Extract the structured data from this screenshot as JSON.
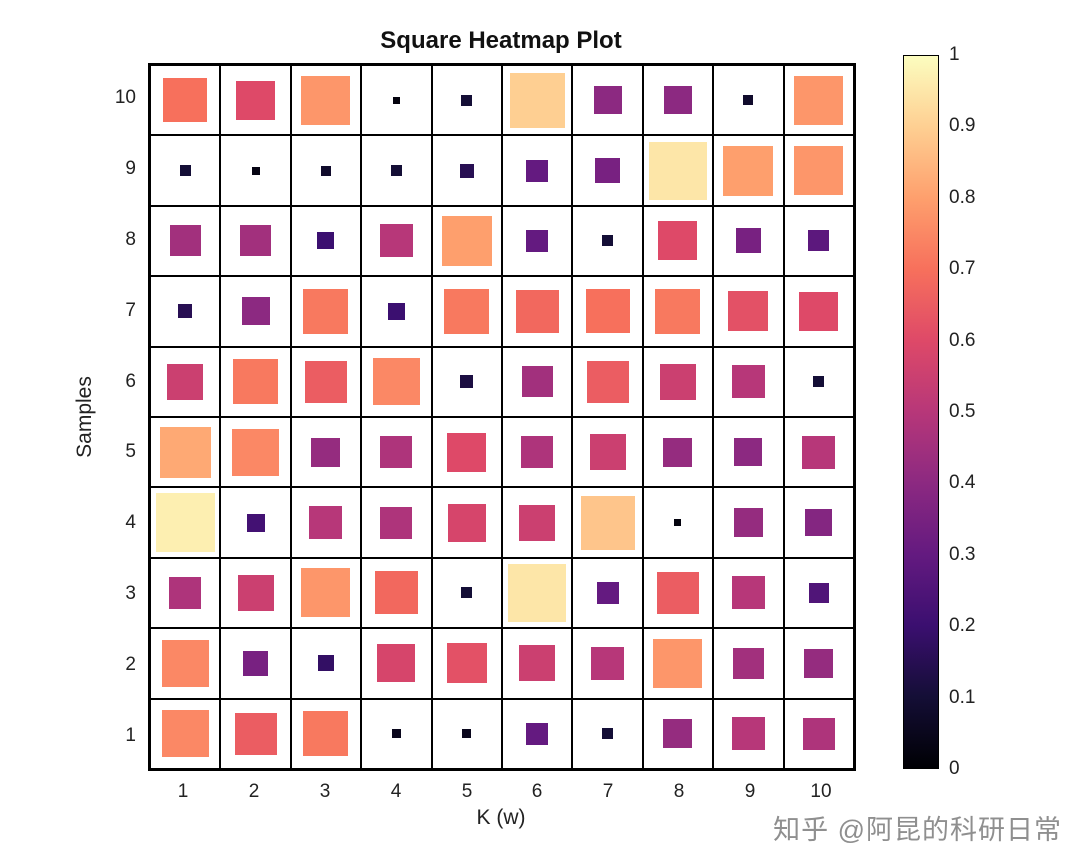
{
  "title": "Square Heatmap Plot",
  "watermark": "知乎 @阿昆的科研日常",
  "chart_data": {
    "type": "heatmap",
    "title": "Square Heatmap Plot",
    "xlabel": "K (w)",
    "ylabel": "Samples",
    "x_ticks": [
      "1",
      "2",
      "3",
      "4",
      "5",
      "6",
      "7",
      "8",
      "9",
      "10"
    ],
    "y_ticks_top_to_bottom": [
      "10",
      "9",
      "8",
      "7",
      "6",
      "5",
      "4",
      "3",
      "2",
      "1"
    ],
    "value_range": [
      0,
      1
    ],
    "encoding": "each cell drawn as a centered square; both square size and fill color encode the cell value",
    "grid": "on, black cell outlines",
    "colormap": "magma",
    "colormap_stops": [
      {
        "t": 0.0,
        "c": "#000004"
      },
      {
        "t": 0.1,
        "c": "#140e36"
      },
      {
        "t": 0.2,
        "c": "#3b0f70"
      },
      {
        "t": 0.3,
        "c": "#641a80"
      },
      {
        "t": 0.4,
        "c": "#8c2981"
      },
      {
        "t": 0.5,
        "c": "#b73779"
      },
      {
        "t": 0.6,
        "c": "#de4968"
      },
      {
        "t": 0.7,
        "c": "#f7705c"
      },
      {
        "t": 0.8,
        "c": "#fe9f6d"
      },
      {
        "t": 0.9,
        "c": "#fecf92"
      },
      {
        "t": 1.0,
        "c": "#fcfdbf"
      }
    ],
    "colorbar_ticks_top_to_bottom": [
      "1",
      "0.9",
      "0.8",
      "0.7",
      "0.6",
      "0.5",
      "0.4",
      "0.3",
      "0.2",
      "0.1",
      "0"
    ],
    "colorbar_position": "right",
    "matrix_rows_samples_10_to_1": [
      [
        0.7,
        0.6,
        0.78,
        0.02,
        0.1,
        0.9,
        0.4,
        0.4,
        0.08,
        0.78
      ],
      [
        0.1,
        0.03,
        0.08,
        0.1,
        0.15,
        0.3,
        0.35,
        0.95,
        0.8,
        0.78
      ],
      [
        0.45,
        0.45,
        0.2,
        0.5,
        0.8,
        0.3,
        0.1,
        0.6,
        0.35,
        0.28
      ],
      [
        0.15,
        0.4,
        0.72,
        0.2,
        0.72,
        0.68,
        0.7,
        0.72,
        0.62,
        0.6
      ],
      [
        0.55,
        0.72,
        0.65,
        0.75,
        0.12,
        0.45,
        0.65,
        0.55,
        0.5,
        0.1
      ],
      [
        0.82,
        0.75,
        0.42,
        0.48,
        0.6,
        0.48,
        0.55,
        0.42,
        0.4,
        0.5
      ],
      [
        0.97,
        0.22,
        0.5,
        0.48,
        0.58,
        0.55,
        0.88,
        0.02,
        0.42,
        0.38
      ],
      [
        0.48,
        0.55,
        0.78,
        0.68,
        0.1,
        0.95,
        0.3,
        0.65,
        0.5,
        0.25
      ],
      [
        0.75,
        0.35,
        0.18,
        0.58,
        0.62,
        0.55,
        0.5,
        0.78,
        0.45,
        0.42
      ],
      [
        0.75,
        0.65,
        0.72,
        0.05,
        0.05,
        0.3,
        0.1,
        0.42,
        0.5,
        0.48
      ]
    ]
  }
}
